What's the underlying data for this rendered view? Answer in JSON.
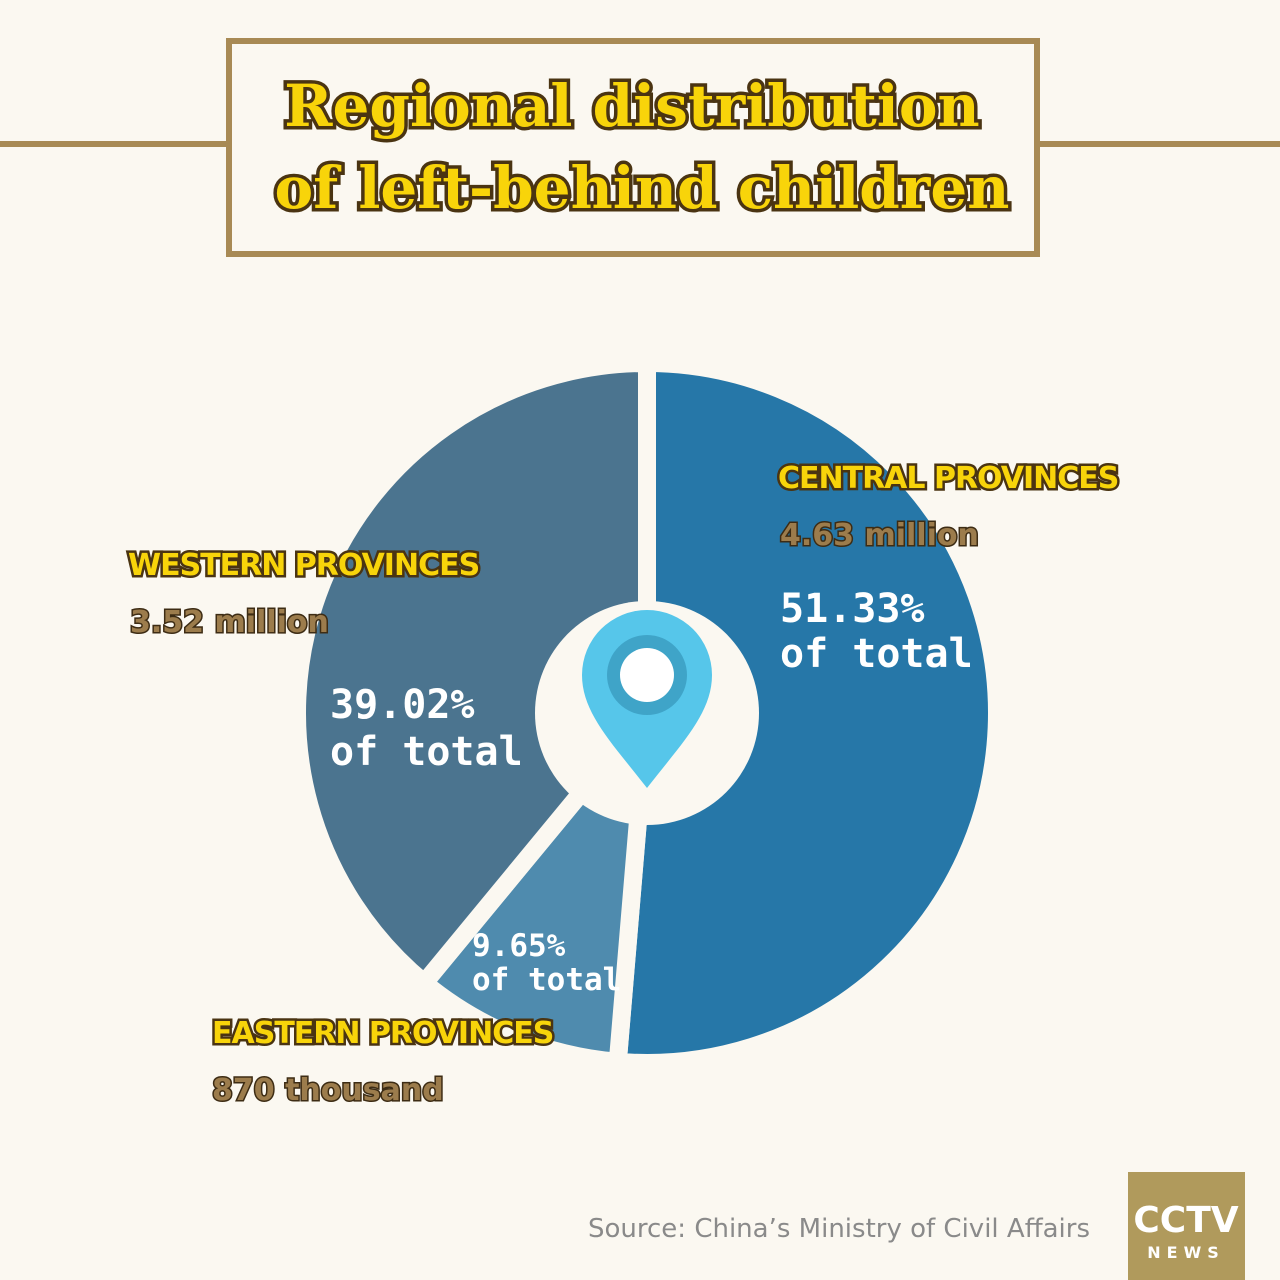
{
  "chart_data": {
    "type": "pie",
    "title_lines": [
      "Regional distribution",
      "of left-behind children"
    ],
    "categories": [
      "CENTRAL PROVINCES",
      "EASTERN PROVINCES",
      "WESTERN PROVINCES"
    ],
    "values": [
      51.33,
      9.65,
      39.02
    ],
    "value_labels": [
      "51.33%",
      "9.65%",
      "39.02%"
    ],
    "value_suffix": "of total",
    "amounts": [
      4630000,
      870000,
      3520000
    ],
    "amount_labels": [
      "4.63 million",
      "870 thousand",
      "3.52 million"
    ],
    "colors": [
      "#2677a8",
      "#4f8bae",
      "#4b748f"
    ],
    "source": "Source: China’s Ministry of Civil Affairs",
    "logo": {
      "top": "CCTV",
      "bottom": "NEWS"
    }
  }
}
